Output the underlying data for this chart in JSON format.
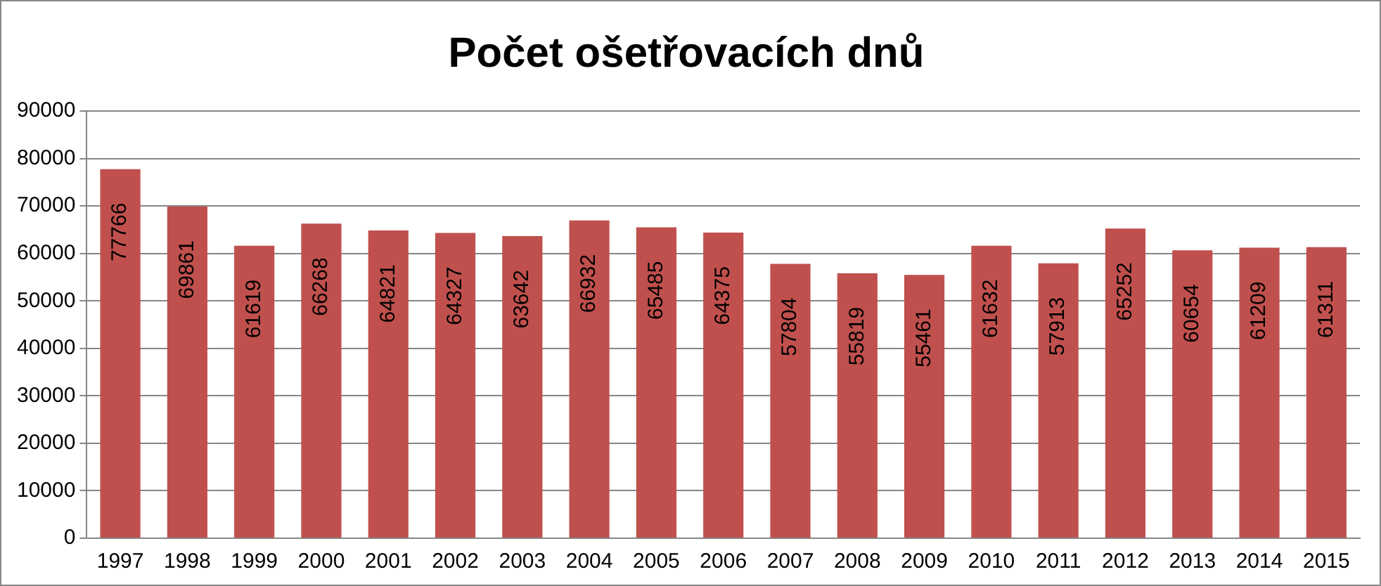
{
  "chart_data": {
    "type": "bar",
    "title": "Počet ošetřovacích dnů",
    "categories": [
      "1997",
      "1998",
      "1999",
      "2000",
      "2001",
      "2002",
      "2003",
      "2004",
      "2005",
      "2006",
      "2007",
      "2008",
      "2009",
      "2010",
      "2011",
      "2012",
      "2013",
      "2014",
      "2015"
    ],
    "values": [
      77766,
      69861,
      61619,
      66268,
      64821,
      64327,
      63642,
      66932,
      65485,
      64375,
      57804,
      55819,
      55461,
      61632,
      57913,
      65252,
      60654,
      61209,
      61311
    ],
    "color": "#c0504d",
    "ylim": [
      0,
      90000
    ],
    "yticks": [
      0,
      10000,
      20000,
      30000,
      40000,
      50000,
      60000,
      70000,
      80000,
      90000
    ],
    "grid": "y",
    "legend": false,
    "data_labels": true
  }
}
